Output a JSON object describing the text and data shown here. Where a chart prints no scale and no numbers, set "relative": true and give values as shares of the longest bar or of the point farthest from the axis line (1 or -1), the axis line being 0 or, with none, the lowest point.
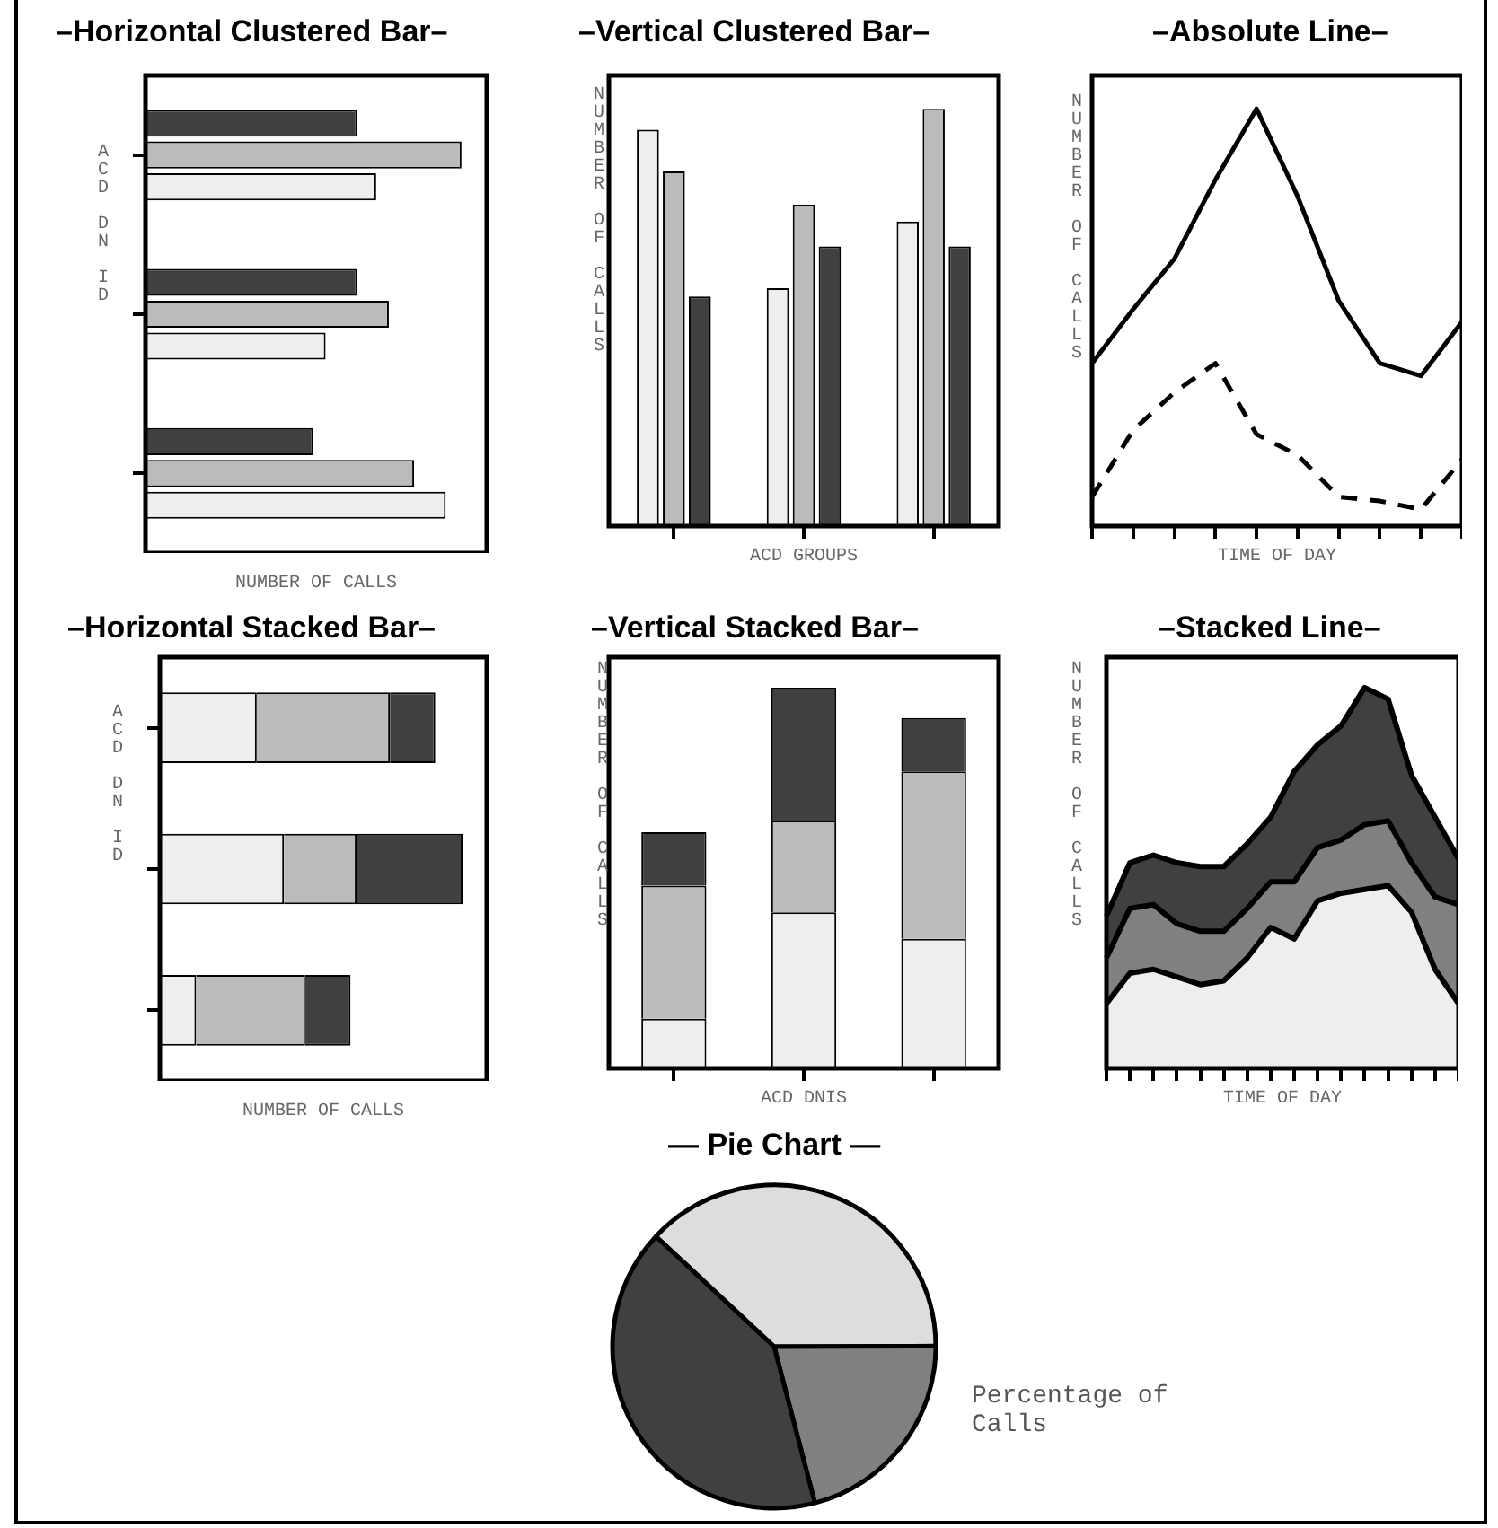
{
  "chart_data": [
    {
      "type": "bar",
      "title": "–Horizontal Clustered Bar–",
      "xlabel": "NUMBER OF CALLS",
      "ylabel": "ACD DN ID",
      "orientation": "horizontal",
      "relative": true,
      "categories": [
        null,
        null,
        null
      ],
      "series": [
        {
          "color": "#404040",
          "values": [
            0.67,
            0.67,
            0.53
          ]
        },
        {
          "color": "#bbbbbb",
          "values": [
            1.0,
            0.77,
            0.85
          ]
        },
        {
          "color": "#eeeeee",
          "values": [
            0.73,
            0.57,
            0.95
          ]
        }
      ]
    },
    {
      "type": "bar",
      "title": "–Vertical Clustered Bar–",
      "xlabel": "ACD GROUPS",
      "ylabel": "NUMBER OF CALLS",
      "relative": true,
      "categories": [
        null,
        null,
        null
      ],
      "series": [
        {
          "color": "#eeeeee",
          "values": [
            0.95,
            0.57,
            0.73
          ]
        },
        {
          "color": "#bbbbbb",
          "values": [
            0.85,
            0.77,
            1.0
          ]
        },
        {
          "color": "#404040",
          "values": [
            0.55,
            0.67,
            0.67
          ]
        }
      ]
    },
    {
      "type": "line",
      "title": "–Absolute Line–",
      "xlabel": "TIME OF DAY",
      "ylabel": "NUMBER OF CALLS",
      "relative": true,
      "categories": [
        null,
        null,
        null,
        null,
        null,
        null,
        null,
        null,
        null,
        null
      ],
      "series": [
        {
          "color": "#000000",
          "line_style": "solid",
          "values": [
            0.39,
            0.52,
            0.64,
            0.83,
            1.0,
            0.79,
            0.54,
            0.39,
            0.36,
            0.49
          ]
        },
        {
          "color": "#000000",
          "line_style": "dashed",
          "values": [
            0.07,
            0.23,
            0.32,
            0.39,
            0.22,
            0.17,
            0.07,
            0.06,
            0.04,
            0.16
          ]
        }
      ]
    },
    {
      "type": "bar",
      "title": "–Horizontal Stacked Bar–",
      "xlabel": "NUMBER OF CALLS",
      "ylabel": "ACD DN ID",
      "orientation": "horizontal",
      "stacked": true,
      "relative": true,
      "categories": [
        null,
        null,
        null
      ],
      "series": [
        {
          "color": "#eeeeee",
          "values": [
            0.32,
            0.41,
            0.12
          ]
        },
        {
          "color": "#bbbbbb",
          "values": [
            0.44,
            0.24,
            0.36
          ]
        },
        {
          "color": "#404040",
          "values": [
            0.15,
            0.35,
            0.15
          ]
        }
      ]
    },
    {
      "type": "bar",
      "title": "–Vertical Stacked Bar–",
      "xlabel": "ACD DNIS",
      "ylabel": "NUMBER OF CALLS",
      "stacked": true,
      "relative": true,
      "categories": [
        null,
        null,
        null
      ],
      "series": [
        {
          "color": "#eeeeee",
          "values": [
            0.13,
            0.41,
            0.34
          ]
        },
        {
          "color": "#bbbbbb",
          "values": [
            0.35,
            0.24,
            0.44
          ]
        },
        {
          "color": "#404040",
          "values": [
            0.14,
            0.35,
            0.14
          ]
        }
      ]
    },
    {
      "type": "area",
      "title": "–Stacked Line–",
      "xlabel": "TIME OF DAY",
      "ylabel": "NUMBER OF CALLS",
      "stacked": true,
      "relative": true,
      "categories": [
        null,
        null,
        null,
        null,
        null,
        null,
        null,
        null,
        null,
        null,
        null,
        null,
        null,
        null,
        null,
        null
      ],
      "series": [
        {
          "color": "#eeeeee",
          "values": [
            0.17,
            0.25,
            0.26,
            0.24,
            0.22,
            0.23,
            0.29,
            0.37,
            0.34,
            0.44,
            0.46,
            0.47,
            0.48,
            0.41,
            0.26,
            0.17
          ]
        },
        {
          "color": "#808080",
          "values": [
            0.12,
            0.17,
            0.17,
            0.14,
            0.14,
            0.13,
            0.13,
            0.12,
            0.15,
            0.14,
            0.14,
            0.17,
            0.17,
            0.13,
            0.19,
            0.26
          ]
        },
        {
          "color": "#404040",
          "values": [
            0.11,
            0.12,
            0.13,
            0.16,
            0.17,
            0.17,
            0.17,
            0.17,
            0.29,
            0.27,
            0.3,
            0.36,
            0.32,
            0.23,
            0.21,
            0.12
          ]
        }
      ]
    },
    {
      "type": "pie",
      "title": "— Pie Chart —",
      "categories": [
        null,
        null,
        null
      ],
      "values": [
        38,
        21,
        41
      ],
      "colors": [
        "#dddddd",
        "#808080",
        "#404040"
      ],
      "annotations": [
        "Percentage of Calls"
      ]
    }
  ]
}
